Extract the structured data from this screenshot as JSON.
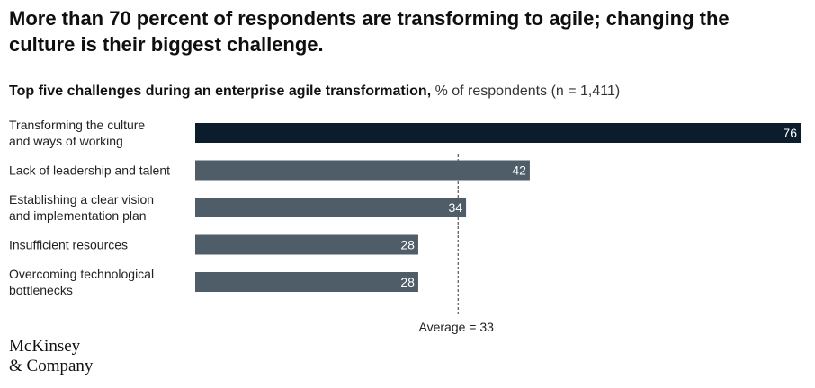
{
  "headline": "More than 70 percent of respondents are transforming to agile; changing the culture is their biggest challenge.",
  "subtitle_bold": "Top five challenges during an enterprise agile transformation,",
  "subtitle_rest": "% of respondents (n = 1,411)",
  "logo": {
    "line1": "McKinsey",
    "line2": "& Company"
  },
  "colors": {
    "highlight_bar": "#0b1c2c",
    "bar": "#4f5d68",
    "bar_label": "#ffffff",
    "reference_line": "#333333"
  },
  "chart_data": {
    "type": "bar",
    "orientation": "horizontal",
    "title": "Top five challenges during an enterprise agile transformation",
    "unit": "% of respondents (n = 1,411)",
    "categories": [
      [
        "Transforming the culture",
        "and ways of working"
      ],
      [
        "Lack of leadership and talent"
      ],
      [
        "Establishing a clear vision",
        "and implementation plan"
      ],
      [
        "Insufficient resources"
      ],
      [
        "Overcoming technological",
        "bottlenecks"
      ]
    ],
    "values": [
      76,
      42,
      34,
      28,
      28
    ],
    "reference_line": {
      "value": 33,
      "label": "Average = 33"
    },
    "xlim": [
      0,
      76
    ],
    "grid": false,
    "legend": "none"
  }
}
